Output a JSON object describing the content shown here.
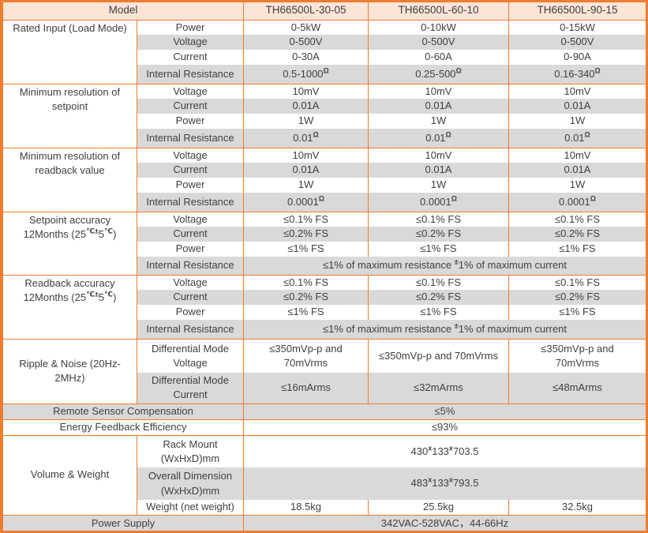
{
  "colors": {
    "border": "#ED7D31",
    "header_bg": "#FCE4D6",
    "shade_bg": "#D9D9D9",
    "text": "#404040"
  },
  "header": {
    "model_label": "Model",
    "models": [
      "TH66500L-30-05",
      "TH66500L-60-10",
      "TH66500L-90-15"
    ]
  },
  "sections": [
    {
      "label": "Rated Input (Load Mode)",
      "label_align": "top",
      "rows": [
        {
          "param": "Power",
          "values": [
            "0-5kW",
            "0-10kW",
            "0-15kW"
          ],
          "shaded": false,
          "h": 19
        },
        {
          "param": "Voltage",
          "values": [
            "0-500V",
            "0-500V",
            "0-500V"
          ],
          "shaded": true,
          "h": 19
        },
        {
          "param": "Current",
          "values": [
            "0-30A",
            "0-60A",
            "0-90A"
          ],
          "shaded": false,
          "h": 19
        },
        {
          "param": "Internal Resistance",
          "values": [
            "0.5-1000^{Ω}",
            "0.25-500^{Ω}",
            "0.16-340^{Ω}"
          ],
          "shaded": true,
          "h": 24
        }
      ]
    },
    {
      "label": "Minimum resolution of\nsetpoint",
      "label_align": "top",
      "rows": [
        {
          "param": "Voltage",
          "values": [
            "10mV",
            "10mV",
            "10mV"
          ],
          "shaded": false,
          "h": 19
        },
        {
          "param": "Current",
          "values": [
            "0.01A",
            "0.01A",
            "0.01A"
          ],
          "shaded": true,
          "h": 19
        },
        {
          "param": "Power",
          "values": [
            "1W",
            "1W",
            "1W"
          ],
          "shaded": false,
          "h": 19
        },
        {
          "param": "Internal Resistance",
          "values": [
            "0.01^{Ω}",
            "0.01^{Ω}",
            "0.01^{Ω}"
          ],
          "shaded": true,
          "h": 24
        }
      ]
    },
    {
      "label": "Minimum resolution of\nreadback value",
      "label_align": "top",
      "rows": [
        {
          "param": "Voltage",
          "values": [
            "10mV",
            "10mV",
            "10mV"
          ],
          "shaded": false,
          "h": 19
        },
        {
          "param": "Current",
          "values": [
            "0.01A",
            "0.01A",
            "0.01A"
          ],
          "shaded": true,
          "h": 19
        },
        {
          "param": "Power",
          "values": [
            "1W",
            "1W",
            "1W"
          ],
          "shaded": false,
          "h": 19
        },
        {
          "param": "Internal Resistance",
          "values": [
            "0.0001^{Ω}",
            "0.0001^{Ω}",
            "0.0001^{Ω}"
          ],
          "shaded": true,
          "h": 24
        }
      ]
    },
    {
      "label": "Setpoint accuracy\n12Months (25^{℃±}5^{℃})",
      "label_align": "top",
      "rows": [
        {
          "param": "Voltage",
          "values": [
            "≤0.1% FS",
            "≤0.1% FS",
            "≤0.1% FS"
          ],
          "shaded": false,
          "h": 19
        },
        {
          "param": "Current",
          "values": [
            "≤0.2% FS",
            "≤0.2% FS",
            "≤0.2% FS"
          ],
          "shaded": true,
          "h": 19
        },
        {
          "param": "Power",
          "values": [
            "≤1% FS",
            "≤1% FS",
            "≤1% FS"
          ],
          "shaded": false,
          "h": 19
        },
        {
          "param": "Internal Resistance",
          "span_value": "≤1% of maximum resistance ^{±}1% of maximum current",
          "shaded": true,
          "h": 23
        }
      ]
    },
    {
      "label": "Readback accuracy\n12Months (25^{℃±}5^{℃})",
      "label_align": "top",
      "rows": [
        {
          "param": "Voltage",
          "values": [
            "≤0.1% FS",
            "≤0.1% FS",
            "≤0.1% FS"
          ],
          "shaded": false,
          "h": 19
        },
        {
          "param": "Current",
          "values": [
            "≤0.2% FS",
            "≤0.2% FS",
            "≤0.2% FS"
          ],
          "shaded": true,
          "h": 19
        },
        {
          "param": "Power",
          "values": [
            "≤1% FS",
            "≤1% FS",
            "≤1% FS"
          ],
          "shaded": false,
          "h": 19
        },
        {
          "param": "Internal Resistance",
          "span_value": "≤1% of maximum resistance ^{±}1% of maximum current",
          "shaded": true,
          "h": 24
        }
      ]
    },
    {
      "label": "Ripple & Noise (20Hz-\n2MHz)",
      "label_align": "middle",
      "rows": [
        {
          "param": "Differential Mode\nVoltage",
          "values": [
            "≤350mVp-p and\n70mVrms",
            "≤350mVp-p and 70mVrms",
            "≤350mVp-p and\n70mVrms"
          ],
          "shaded": false,
          "h": 43
        },
        {
          "param": "Differential Mode\nCurrent",
          "values": [
            "≤16mArms",
            "≤32mArms",
            "≤48mArms"
          ],
          "shaded": true,
          "h": 39
        }
      ]
    },
    {
      "full_label": "Remote Sensor Compensation",
      "span_value": "≤5%",
      "shaded": true,
      "h": 20
    },
    {
      "full_label": "Energy Feedback Efficiency",
      "span_value": "≤93%",
      "shaded": false,
      "h": 20
    },
    {
      "label": "Volume & Weight",
      "label_align": "middle",
      "rows": [
        {
          "param": "Rack Mount\n(WxHxD)mm",
          "span_value": "430^{x}133^{x}703.5",
          "shaded": false,
          "h": 41
        },
        {
          "param": "Overall Dimension\n(WxHxD)mm",
          "span_value": "483^{x}133^{x}793.5",
          "shaded": true,
          "h": 41
        },
        {
          "param": "Weight (net weight)",
          "values": [
            "18.5kg",
            "25.5kg",
            "32.5kg"
          ],
          "shaded": false,
          "h": 19
        }
      ]
    },
    {
      "full_label": "Power Supply",
      "span_value": "342VAC-528VAC，44-66Hz",
      "shaded": true,
      "h": 21
    }
  ]
}
